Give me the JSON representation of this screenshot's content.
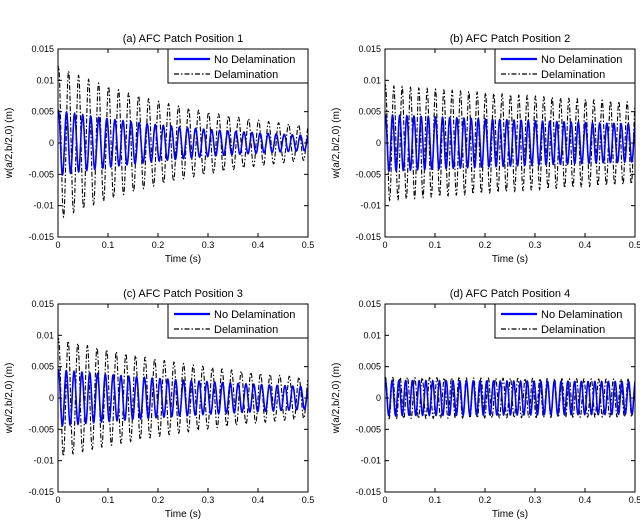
{
  "chart_data": [
    {
      "type": "line",
      "title": "(a)  AFC Patch Position 1",
      "xlabel": "Time (s)",
      "ylabel": "w(a/2,b/2,0) (m)",
      "xlim": [
        0,
        0.5
      ],
      "ylim": [
        -0.015,
        0.015
      ],
      "xticks": [
        "0",
        "0.1",
        "0.2",
        "0.3",
        "0.4",
        "0.5"
      ],
      "yticks": [
        "-0.015",
        "-0.01",
        "-0.005",
        "0",
        "0.005",
        "0.01",
        "0.015"
      ],
      "legend": "top-right",
      "series": [
        {
          "name": "No Delamination",
          "color": "#0000ff",
          "style": "solid",
          "frequency_hz": 62,
          "amplitude_start": 0.0052,
          "amplitude_end": 0.0012
        },
        {
          "name": "Delamination",
          "color": "#000000",
          "style": "dashdot",
          "frequency_hz": 50,
          "amplitude_start": 0.0122,
          "amplitude_end": 0.0027
        }
      ]
    },
    {
      "type": "line",
      "title": "(b)  AFC Patch Position 2",
      "xlabel": "Time (s)",
      "ylabel": "w(a/2,b/2,0) (m)",
      "xlim": [
        0,
        0.5
      ],
      "ylim": [
        -0.015,
        0.015
      ],
      "xticks": [
        "0",
        "0.1",
        "0.2",
        "0.3",
        "0.4",
        "0.5"
      ],
      "yticks": [
        "-0.015",
        "-0.01",
        "-0.005",
        "0",
        "0.005",
        "0.01",
        "0.015"
      ],
      "legend": "top-right",
      "series": [
        {
          "name": "No Delamination",
          "color": "#0000ff",
          "style": "solid",
          "frequency_hz": 70,
          "amplitude_start": 0.0045,
          "amplitude_end": 0.003
        },
        {
          "name": "Delamination",
          "color": "#000000",
          "style": "dashdot",
          "frequency_hz": 60,
          "amplitude_start": 0.0092,
          "amplitude_end": 0.0065
        }
      ]
    },
    {
      "type": "line",
      "title": "(c)  AFC Patch Position 3",
      "xlabel": "Time (s)",
      "ylabel": "w(a/2,b/2,0) (m)",
      "xlim": [
        0,
        0.5
      ],
      "ylim": [
        -0.015,
        0.015
      ],
      "xticks": [
        "0",
        "0.1",
        "0.2",
        "0.3",
        "0.4",
        "0.5"
      ],
      "yticks": [
        "-0.015",
        "-0.01",
        "-0.005",
        "0",
        "0.005",
        "0.01",
        "0.015"
      ],
      "legend": "top-right",
      "series": [
        {
          "name": "No Delamination",
          "color": "#0000ff",
          "style": "solid",
          "frequency_hz": 64,
          "amplitude_start": 0.0045,
          "amplitude_end": 0.0018
        },
        {
          "name": "Delamination",
          "color": "#000000",
          "style": "dashdot",
          "frequency_hz": 52,
          "amplitude_start": 0.0095,
          "amplitude_end": 0.0032
        }
      ]
    },
    {
      "type": "line",
      "title": "(d)  AFC Patch Position 4",
      "xlabel": "Time (s)",
      "ylabel": "w(a/2,b/2,0) (m)",
      "xlim": [
        0,
        0.5
      ],
      "ylim": [
        -0.015,
        0.015
      ],
      "xticks": [
        "0",
        "0.1",
        "0.2",
        "0.3",
        "0.4",
        "0.5"
      ],
      "yticks": [
        "-0.015",
        "-0.01",
        "-0.005",
        "0",
        "0.005",
        "0.01",
        "0.015"
      ],
      "legend": "top-right",
      "series": [
        {
          "name": "No Delamination",
          "color": "#0000ff",
          "style": "solid",
          "frequency_hz": 74,
          "amplitude_start": 0.0028,
          "amplitude_end": 0.0026
        },
        {
          "name": "Delamination",
          "color": "#000000",
          "style": "dashdot",
          "frequency_hz": 68,
          "amplitude_start": 0.0033,
          "amplitude_end": 0.003
        }
      ]
    }
  ]
}
